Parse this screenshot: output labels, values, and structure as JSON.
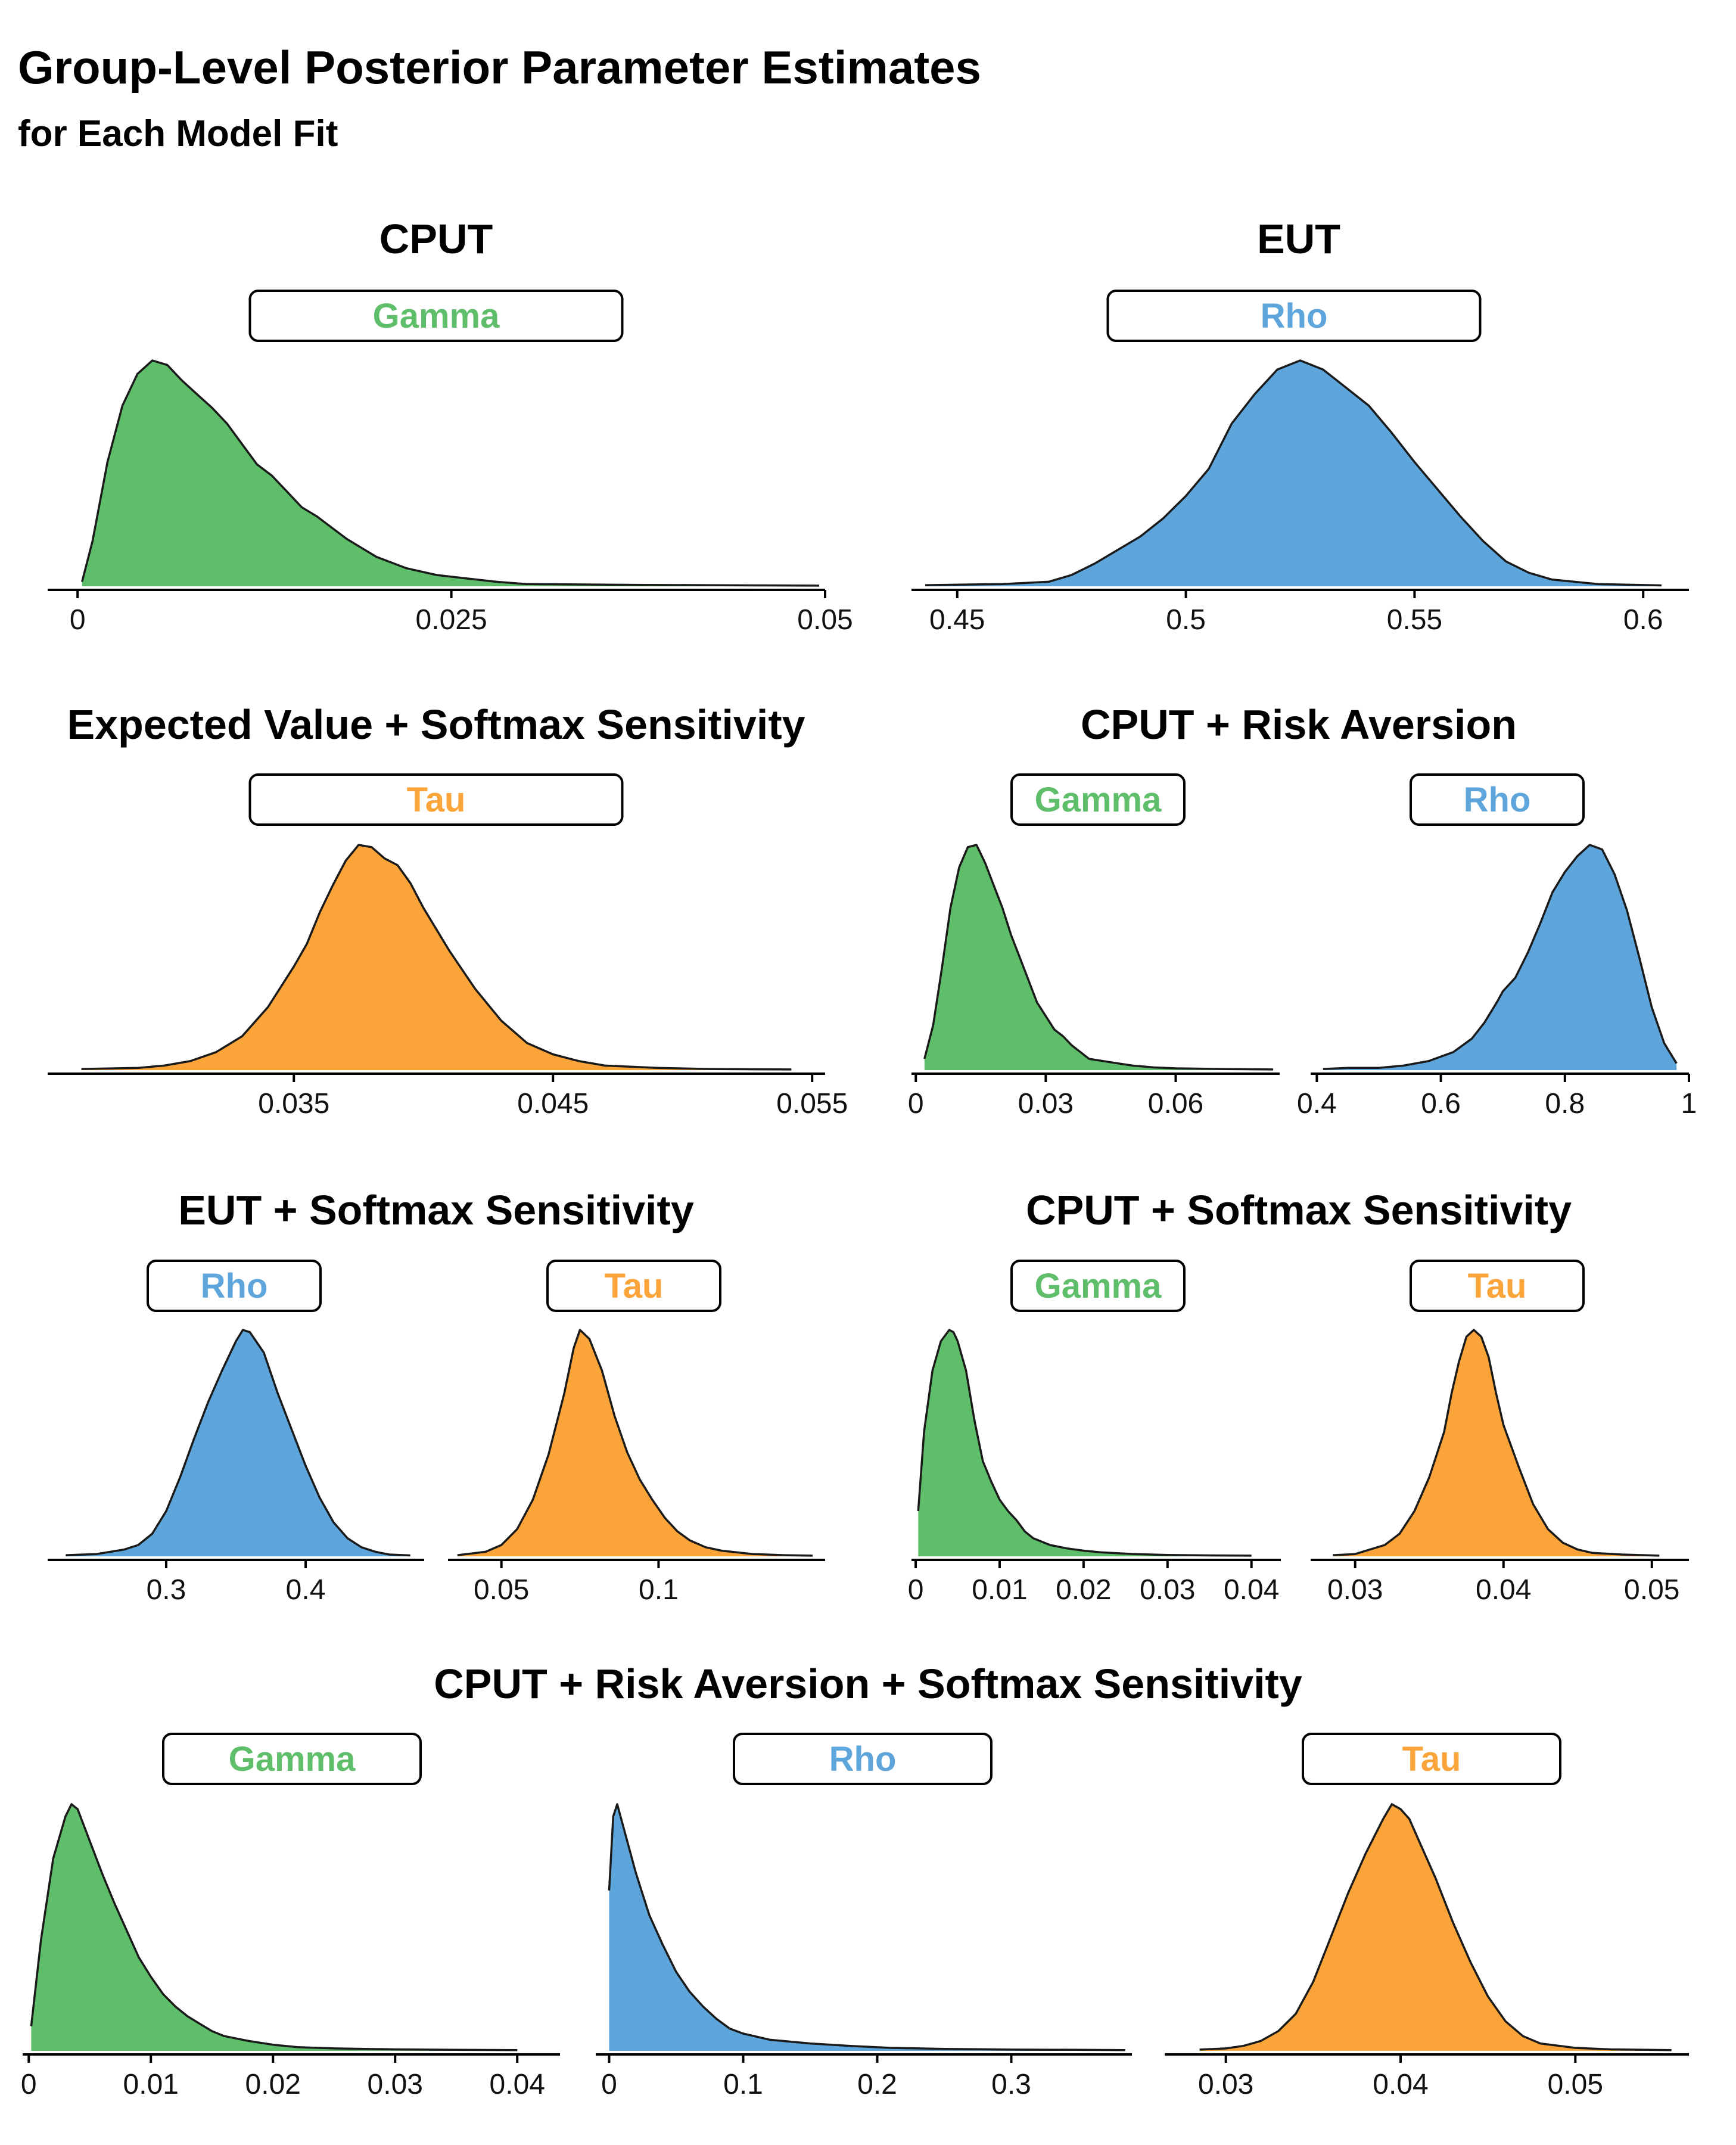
{
  "title": "Group-Level Posterior Parameter Estimates",
  "subtitle": "for Each Model Fit",
  "colors": {
    "Gamma": "#5fbe69",
    "Rho": "#5da5da",
    "Tau": "#faa43a"
  },
  "chart_data": [
    {
      "type": "area",
      "model": "CPUT",
      "parameter": "Gamma",
      "xticks": [
        "0",
        "0.025",
        "0.05"
      ],
      "xlim": [
        -0.002,
        0.05
      ],
      "x": [
        0.0003,
        0.001,
        0.002,
        0.003,
        0.004,
        0.005,
        0.006,
        0.007,
        0.008,
        0.009,
        0.01,
        0.011,
        0.012,
        0.013,
        0.014,
        0.015,
        0.016,
        0.017,
        0.018,
        0.019,
        0.02,
        0.022,
        0.024,
        0.026,
        0.028,
        0.03,
        0.034,
        0.038,
        0.042,
        0.046,
        0.0496
      ],
      "y": [
        0.02,
        0.2,
        0.55,
        0.8,
        0.94,
        1.0,
        0.98,
        0.91,
        0.85,
        0.79,
        0.72,
        0.63,
        0.54,
        0.49,
        0.42,
        0.35,
        0.31,
        0.26,
        0.21,
        0.17,
        0.13,
        0.08,
        0.05,
        0.035,
        0.02,
        0.01,
        0.008,
        0.006,
        0.005,
        0.004,
        0.003
      ]
    },
    {
      "type": "area",
      "model": "EUT",
      "parameter": "Rho",
      "xticks": [
        "0.45",
        "0.5",
        "0.55",
        "0.6"
      ],
      "xlim": [
        0.44,
        0.61
      ],
      "x": [
        0.443,
        0.46,
        0.47,
        0.475,
        0.48,
        0.485,
        0.49,
        0.495,
        0.5,
        0.505,
        0.51,
        0.515,
        0.52,
        0.525,
        0.53,
        0.535,
        0.54,
        0.545,
        0.55,
        0.555,
        0.56,
        0.565,
        0.57,
        0.575,
        0.58,
        0.59,
        0.604
      ],
      "y": [
        0.005,
        0.01,
        0.02,
        0.05,
        0.1,
        0.16,
        0.22,
        0.3,
        0.4,
        0.52,
        0.72,
        0.85,
        0.96,
        1.0,
        0.96,
        0.88,
        0.8,
        0.68,
        0.55,
        0.43,
        0.31,
        0.2,
        0.11,
        0.06,
        0.03,
        0.01,
        0.004
      ]
    },
    {
      "type": "area",
      "model": "Expected Value + Softmax Sensitivity",
      "parameter": "Tau",
      "xticks": [
        "0.035",
        "0.045",
        "0.055"
      ],
      "xlim": [
        0.0255,
        0.0555
      ],
      "x": [
        0.0268,
        0.029,
        0.03,
        0.031,
        0.032,
        0.033,
        0.034,
        0.035,
        0.0355,
        0.036,
        0.0365,
        0.037,
        0.0375,
        0.038,
        0.0385,
        0.039,
        0.0395,
        0.04,
        0.041,
        0.042,
        0.043,
        0.044,
        0.045,
        0.046,
        0.047,
        0.049,
        0.051,
        0.0542
      ],
      "y": [
        0.005,
        0.01,
        0.02,
        0.04,
        0.08,
        0.15,
        0.28,
        0.46,
        0.56,
        0.7,
        0.82,
        0.93,
        1.0,
        0.99,
        0.94,
        0.91,
        0.83,
        0.72,
        0.53,
        0.36,
        0.22,
        0.12,
        0.07,
        0.04,
        0.02,
        0.01,
        0.005,
        0.003
      ]
    },
    {
      "type": "area",
      "model": "CPUT + Risk Aversion",
      "parameter": "Gamma",
      "xticks": [
        "0",
        "0.03",
        "0.06"
      ],
      "xlim": [
        -0.001,
        0.084
      ],
      "x": [
        0.002,
        0.004,
        0.006,
        0.008,
        0.01,
        0.012,
        0.014,
        0.016,
        0.018,
        0.02,
        0.022,
        0.024,
        0.026,
        0.028,
        0.03,
        0.032,
        0.034,
        0.036,
        0.038,
        0.04,
        0.045,
        0.05,
        0.055,
        0.06,
        0.07,
        0.0825
      ],
      "y": [
        0.05,
        0.2,
        0.45,
        0.72,
        0.9,
        0.99,
        1.0,
        0.92,
        0.82,
        0.72,
        0.6,
        0.5,
        0.4,
        0.3,
        0.24,
        0.18,
        0.15,
        0.11,
        0.08,
        0.05,
        0.035,
        0.02,
        0.012,
        0.008,
        0.005,
        0.003
      ]
    },
    {
      "type": "area",
      "model": "CPUT + Risk Aversion",
      "parameter": "Rho",
      "xticks": [
        "0.4",
        "0.6",
        "0.8",
        "1"
      ],
      "xlim": [
        0.39,
        1.0
      ],
      "x": [
        0.41,
        0.45,
        0.5,
        0.54,
        0.58,
        0.62,
        0.65,
        0.67,
        0.69,
        0.7,
        0.72,
        0.74,
        0.76,
        0.78,
        0.8,
        0.82,
        0.84,
        0.86,
        0.88,
        0.9,
        0.92,
        0.94,
        0.96,
        0.98
      ],
      "y": [
        0.005,
        0.01,
        0.01,
        0.02,
        0.04,
        0.08,
        0.14,
        0.21,
        0.3,
        0.35,
        0.41,
        0.52,
        0.65,
        0.79,
        0.88,
        0.95,
        1.0,
        0.98,
        0.87,
        0.71,
        0.5,
        0.28,
        0.12,
        0.03
      ]
    },
    {
      "type": "area",
      "model": "EUT + Softmax Sensitivity",
      "parameter": "Rho",
      "xticks": [
        "0.3",
        "0.4"
      ],
      "xlim": [
        0.215,
        0.485
      ],
      "x": [
        0.228,
        0.25,
        0.27,
        0.28,
        0.29,
        0.3,
        0.31,
        0.32,
        0.33,
        0.34,
        0.35,
        0.355,
        0.36,
        0.37,
        0.38,
        0.39,
        0.4,
        0.41,
        0.42,
        0.43,
        0.44,
        0.45,
        0.46,
        0.475
      ],
      "y": [
        0.005,
        0.01,
        0.03,
        0.05,
        0.1,
        0.2,
        0.35,
        0.52,
        0.68,
        0.82,
        0.95,
        1.0,
        0.99,
        0.9,
        0.72,
        0.56,
        0.4,
        0.26,
        0.15,
        0.08,
        0.04,
        0.02,
        0.008,
        0.004
      ]
    },
    {
      "type": "area",
      "model": "EUT + Softmax Sensitivity",
      "parameter": "Tau",
      "xticks": [
        "0.05",
        "0.1"
      ],
      "xlim": [
        0.033,
        0.153
      ],
      "x": [
        0.036,
        0.045,
        0.05,
        0.055,
        0.06,
        0.065,
        0.07,
        0.073,
        0.075,
        0.078,
        0.082,
        0.086,
        0.09,
        0.094,
        0.098,
        0.102,
        0.106,
        0.11,
        0.115,
        0.12,
        0.13,
        0.14,
        0.149
      ],
      "y": [
        0.005,
        0.02,
        0.05,
        0.12,
        0.25,
        0.45,
        0.72,
        0.92,
        1.0,
        0.96,
        0.82,
        0.62,
        0.46,
        0.34,
        0.25,
        0.17,
        0.11,
        0.07,
        0.04,
        0.025,
        0.01,
        0.005,
        0.003
      ]
    },
    {
      "type": "area",
      "model": "CPUT + Softmax Sensitivity",
      "parameter": "Gamma",
      "xticks": [
        "0",
        "0.01",
        "0.02",
        "0.03",
        "0.04"
      ],
      "xlim": [
        -0.0005,
        0.0435
      ],
      "x": [
        0.0003,
        0.001,
        0.002,
        0.003,
        0.004,
        0.0045,
        0.005,
        0.006,
        0.007,
        0.008,
        0.009,
        0.01,
        0.011,
        0.012,
        0.013,
        0.014,
        0.016,
        0.018,
        0.02,
        0.022,
        0.026,
        0.03,
        0.035,
        0.04
      ],
      "y": [
        0.2,
        0.55,
        0.82,
        0.95,
        1.0,
        0.99,
        0.95,
        0.82,
        0.6,
        0.42,
        0.33,
        0.25,
        0.2,
        0.16,
        0.11,
        0.08,
        0.05,
        0.035,
        0.025,
        0.018,
        0.01,
        0.006,
        0.004,
        0.003
      ]
    },
    {
      "type": "area",
      "model": "CPUT + Softmax Sensitivity",
      "parameter": "Tau",
      "xticks": [
        "0.03",
        "0.04",
        "0.05"
      ],
      "xlim": [
        0.027,
        0.0525
      ],
      "x": [
        0.0285,
        0.03,
        0.031,
        0.032,
        0.033,
        0.034,
        0.035,
        0.036,
        0.0365,
        0.037,
        0.0375,
        0.038,
        0.0385,
        0.039,
        0.0395,
        0.04,
        0.041,
        0.042,
        0.043,
        0.044,
        0.045,
        0.046,
        0.048,
        0.0505
      ],
      "y": [
        0.005,
        0.01,
        0.03,
        0.05,
        0.1,
        0.2,
        0.35,
        0.55,
        0.72,
        0.86,
        0.97,
        1.0,
        0.97,
        0.88,
        0.72,
        0.58,
        0.4,
        0.23,
        0.12,
        0.06,
        0.03,
        0.015,
        0.008,
        0.003
      ]
    },
    {
      "type": "area",
      "model": "CPUT + Risk Aversion + Softmax Sensitivity",
      "parameter": "Gamma",
      "xticks": [
        "0",
        "0.01",
        "0.02",
        "0.03",
        "0.04"
      ],
      "xlim": [
        -0.0005,
        0.0435
      ],
      "x": [
        0.0002,
        0.001,
        0.002,
        0.003,
        0.0035,
        0.004,
        0.005,
        0.006,
        0.007,
        0.008,
        0.009,
        0.01,
        0.011,
        0.012,
        0.013,
        0.014,
        0.015,
        0.016,
        0.018,
        0.02,
        0.022,
        0.025,
        0.03,
        0.035,
        0.04
      ],
      "y": [
        0.1,
        0.45,
        0.78,
        0.95,
        1.0,
        0.98,
        0.85,
        0.72,
        0.6,
        0.49,
        0.38,
        0.3,
        0.23,
        0.18,
        0.14,
        0.11,
        0.08,
        0.06,
        0.04,
        0.025,
        0.015,
        0.01,
        0.006,
        0.004,
        0.003
      ]
    },
    {
      "type": "area",
      "model": "CPUT + Risk Aversion + Softmax Sensitivity",
      "parameter": "Rho",
      "xticks": [
        "0",
        "0.1",
        "0.2",
        "0.3"
      ],
      "xlim": [
        -0.01,
        0.39
      ],
      "x": [
        0.0,
        0.003,
        0.006,
        0.01,
        0.02,
        0.03,
        0.04,
        0.05,
        0.06,
        0.07,
        0.08,
        0.09,
        0.1,
        0.12,
        0.15,
        0.18,
        0.21,
        0.25,
        0.3,
        0.35,
        0.385
      ],
      "y": [
        0.65,
        0.95,
        1.0,
        0.92,
        0.72,
        0.55,
        0.43,
        0.32,
        0.24,
        0.18,
        0.13,
        0.09,
        0.07,
        0.045,
        0.03,
        0.02,
        0.012,
        0.008,
        0.005,
        0.004,
        0.003
      ]
    },
    {
      "type": "area",
      "model": "CPUT + Risk Aversion + Softmax Sensitivity",
      "parameter": "Tau",
      "xticks": [
        "0.03",
        "0.04",
        "0.05"
      ],
      "xlim": [
        0.0265,
        0.0565
      ],
      "x": [
        0.0285,
        0.03,
        0.031,
        0.032,
        0.033,
        0.034,
        0.035,
        0.036,
        0.037,
        0.038,
        0.039,
        0.0395,
        0.04,
        0.0405,
        0.041,
        0.042,
        0.043,
        0.044,
        0.045,
        0.046,
        0.047,
        0.048,
        0.05,
        0.052,
        0.0555
      ],
      "y": [
        0.005,
        0.01,
        0.02,
        0.04,
        0.08,
        0.15,
        0.28,
        0.46,
        0.64,
        0.8,
        0.94,
        1.0,
        0.98,
        0.94,
        0.86,
        0.7,
        0.52,
        0.36,
        0.22,
        0.12,
        0.06,
        0.03,
        0.012,
        0.006,
        0.003
      ]
    }
  ]
}
